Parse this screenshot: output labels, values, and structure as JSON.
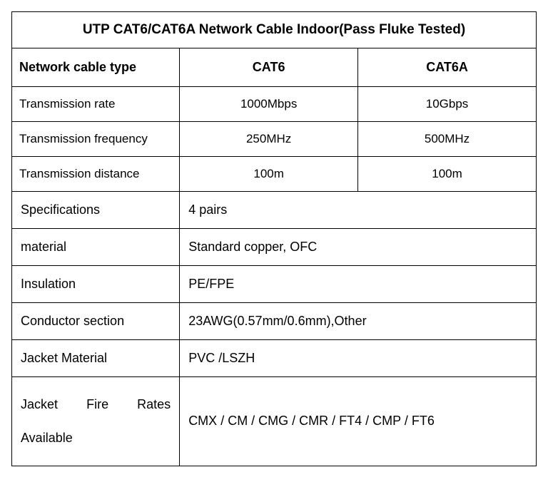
{
  "table": {
    "title": "UTP CAT6/CAT6A Network Cable Indoor(Pass Fluke Tested)",
    "header": {
      "col1": "Network cable type",
      "col2": "CAT6",
      "col3": "CAT6A"
    },
    "rows3": [
      {
        "label": "Transmission rate",
        "v1": "1000Mbps",
        "v2": "10Gbps"
      },
      {
        "label": "Transmission frequency",
        "v1": "250MHz",
        "v2": "500MHz"
      },
      {
        "label": "Transmission distance",
        "v1": "100m",
        "v2": "100m"
      }
    ],
    "rows2": [
      {
        "label": "Specifications",
        "value": "4 pairs"
      },
      {
        "label": "material",
        "value": "Standard copper, OFC"
      },
      {
        "label": "Insulation",
        "value": "PE/FPE"
      },
      {
        "label": "Conductor section",
        "value": "23AWG(0.57mm/0.6mm),Other"
      },
      {
        "label": "Jacket Material",
        "value": "PVC /LSZH"
      }
    ],
    "jacket_fire": {
      "label_line1": "Jacket Fire Rates",
      "label_line2": "Available",
      "value": "CMX / CM / CMG / CMR / FT4 / CMP / FT6"
    },
    "styling": {
      "border_color": "#000000",
      "background": "#ffffff",
      "text_color": "#000000",
      "title_fontsize": 19,
      "header_fontsize": 18,
      "body_fontsize": 17,
      "merged_fontsize": 18,
      "col_widths_pct": [
        32,
        34,
        34
      ]
    }
  }
}
